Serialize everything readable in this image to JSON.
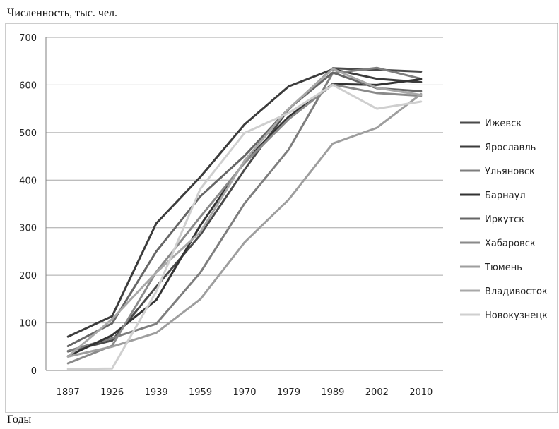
{
  "chart_data": {
    "type": "line",
    "title": "",
    "ylabel": "Численность, тыс. чел.",
    "xlabel": "Годы",
    "categories": [
      "1897",
      "1926",
      "1939",
      "1959",
      "1970",
      "1979",
      "1989",
      "2002",
      "2010"
    ],
    "ylim": [
      0,
      700
    ],
    "yticks": [
      0,
      100,
      200,
      300,
      400,
      500,
      600,
      700
    ],
    "grid": true,
    "legend_position": "right",
    "series": [
      {
        "name": "Ижевск",
        "color": "#4a4a4a",
        "values": [
          40,
          63,
          176,
          285,
          422,
          549,
          635,
          632,
          628
        ]
      },
      {
        "name": "Ярославль",
        "color": "#3c3c3c",
        "values": [
          71,
          114,
          309,
          407,
          517,
          597,
          633,
          613,
          606
        ]
      },
      {
        "name": "Ульяновск",
        "color": "#7e7e7e",
        "values": [
          41,
          68,
          98,
          206,
          351,
          464,
          625,
          636,
          613
        ]
      },
      {
        "name": "Барнаул",
        "color": "#333333",
        "values": [
          30,
          74,
          148,
          305,
          439,
          533,
          602,
          600,
          612
        ]
      },
      {
        "name": "Иркутск",
        "color": "#666666",
        "values": [
          51,
          99,
          250,
          366,
          451,
          550,
          626,
          593,
          587
        ]
      },
      {
        "name": "Хабаровск",
        "color": "#8a8a8a",
        "values": [
          15,
          52,
          207,
          323,
          436,
          528,
          601,
          583,
          577
        ]
      },
      {
        "name": "Тюмень",
        "color": "#9e9e9e",
        "values": [
          29,
          50,
          79,
          150,
          269,
          359,
          477,
          510,
          581
        ]
      },
      {
        "name": "Владивосток",
        "color": "#a8a8a8",
        "values": [
          29,
          108,
          206,
          291,
          441,
          550,
          634,
          594,
          579
        ]
      },
      {
        "name": "Новокузнецк",
        "color": "#cfcfcf",
        "values": [
          3,
          4,
          166,
          382,
          499,
          541,
          600,
          550,
          565
        ]
      }
    ]
  }
}
